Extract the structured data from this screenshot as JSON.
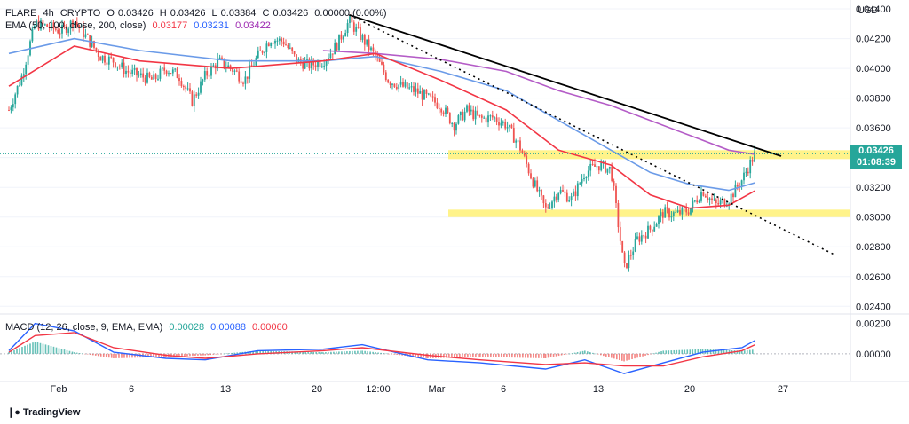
{
  "header": {
    "symbol": "FLARE",
    "interval": "4h",
    "exchange": "CRYPTO",
    "open_label": "O",
    "open": "0.03426",
    "high_label": "H",
    "high": "0.03426",
    "low_label": "L",
    "low": "0.03384",
    "close_label": "C",
    "close": "0.03426",
    "change": "0.00000 (0.00%)"
  },
  "ema_legend": {
    "label": "EMA (50, 100, close, 200, close)",
    "ema50": "0.03177",
    "ema100": "0.03231",
    "ema200": "0.03422"
  },
  "macd_legend": {
    "label": "MACD (12, 26, close, 9, EMA, EMA)",
    "histogram": "0.00028",
    "macd": "0.00088",
    "signal": "0.00060"
  },
  "axis": {
    "currency": "USD",
    "price_ticks": [
      "0.04400",
      "0.04200",
      "0.04000",
      "0.03800",
      "0.03600",
      "0.03400",
      "0.03200",
      "0.03000",
      "0.02800",
      "0.02600",
      "0.02400"
    ],
    "macd_ticks": [
      "0.00200",
      "0.00000"
    ],
    "time_ticks": [
      "Feb",
      "6",
      "13",
      "20",
      "12:00",
      "Mar",
      "6",
      "13",
      "20",
      "27"
    ]
  },
  "price_tag": {
    "price": "0.03426",
    "countdown": "01:08:39"
  },
  "branding": {
    "name": "TradingView"
  },
  "colors": {
    "up": "#26a69a",
    "down": "#ef5350",
    "ema50": "#f23645",
    "ema100": "#6b9be8",
    "ema200": "#b45cc7",
    "zone": "#fff176",
    "trendline": "#000000"
  },
  "chart_data": {
    "type": "line",
    "title": "",
    "x_range": [
      "Jan 27",
      "Mar 27"
    ],
    "ylim": [
      0.0236,
      0.0446
    ],
    "close_path": [
      {
        "x": "Jan 27",
        "y": 0.0372
      },
      {
        "x": "Jan 28",
        "y": 0.0395
      },
      {
        "x": "Jan 29",
        "y": 0.043
      },
      {
        "x": "Jan 30",
        "y": 0.0428
      },
      {
        "x": "Jan 31",
        "y": 0.0425
      },
      {
        "x": "Feb 1",
        "y": 0.0432
      },
      {
        "x": "Feb 2",
        "y": 0.042
      },
      {
        "x": "Feb 3",
        "y": 0.0408
      },
      {
        "x": "Feb 4",
        "y": 0.0405
      },
      {
        "x": "Feb 5",
        "y": 0.0398
      },
      {
        "x": "Feb 6",
        "y": 0.0395
      },
      {
        "x": "Feb 7",
        "y": 0.0392
      },
      {
        "x": "Feb 8",
        "y": 0.04
      },
      {
        "x": "Feb 9",
        "y": 0.0395
      },
      {
        "x": "Feb 10",
        "y": 0.0378
      },
      {
        "x": "Feb 11",
        "y": 0.0395
      },
      {
        "x": "Feb 12",
        "y": 0.0405
      },
      {
        "x": "Feb 13",
        "y": 0.04
      },
      {
        "x": "Feb 14",
        "y": 0.0392
      },
      {
        "x": "Feb 15",
        "y": 0.0408
      },
      {
        "x": "Feb 16",
        "y": 0.042
      },
      {
        "x": "Feb 17",
        "y": 0.0418
      },
      {
        "x": "Feb 18",
        "y": 0.0405
      },
      {
        "x": "Feb 19",
        "y": 0.0402
      },
      {
        "x": "Feb 20",
        "y": 0.0405
      },
      {
        "x": "Feb 21",
        "y": 0.0415
      },
      {
        "x": "Feb 22",
        "y": 0.0432
      },
      {
        "x": "Feb 23",
        "y": 0.042
      },
      {
        "x": "Feb 24",
        "y": 0.0408
      },
      {
        "x": "Feb 25",
        "y": 0.0392
      },
      {
        "x": "Feb 26",
        "y": 0.0388
      },
      {
        "x": "Feb 27",
        "y": 0.0385
      },
      {
        "x": "Feb 28",
        "y": 0.038
      },
      {
        "x": "Mar 1",
        "y": 0.0375
      },
      {
        "x": "Mar 2",
        "y": 0.0362
      },
      {
        "x": "Mar 3",
        "y": 0.0372
      },
      {
        "x": "Mar 4",
        "y": 0.0366
      },
      {
        "x": "Mar 5",
        "y": 0.0367
      },
      {
        "x": "Mar 6",
        "y": 0.0362
      },
      {
        "x": "Mar 7",
        "y": 0.0348
      },
      {
        "x": "Mar 8",
        "y": 0.0325
      },
      {
        "x": "Mar 9",
        "y": 0.0305
      },
      {
        "x": "Mar 10",
        "y": 0.0318
      },
      {
        "x": "Mar 11",
        "y": 0.0312
      },
      {
        "x": "Mar 12",
        "y": 0.033
      },
      {
        "x": "Mar 13",
        "y": 0.0335
      },
      {
        "x": "Mar 14",
        "y": 0.0332
      },
      {
        "x": "Mar 15",
        "y": 0.0265
      },
      {
        "x": "Mar 16",
        "y": 0.0285
      },
      {
        "x": "Mar 17",
        "y": 0.0292
      },
      {
        "x": "Mar 18",
        "y": 0.0303
      },
      {
        "x": "Mar 19",
        "y": 0.0302
      },
      {
        "x": "Mar 20",
        "y": 0.0305
      },
      {
        "x": "Mar 21",
        "y": 0.0318
      },
      {
        "x": "Mar 22",
        "y": 0.0308
      },
      {
        "x": "Mar 23",
        "y": 0.0312
      },
      {
        "x": "Mar 24",
        "y": 0.0325
      },
      {
        "x": "Mar 25",
        "y": 0.03426
      }
    ],
    "ema50": [
      {
        "x": "Jan 27",
        "y": 0.0388
      },
      {
        "x": "Feb 1",
        "y": 0.0415
      },
      {
        "x": "Feb 6",
        "y": 0.0405
      },
      {
        "x": "Feb 13",
        "y": 0.04
      },
      {
        "x": "Feb 20",
        "y": 0.0405
      },
      {
        "x": "Feb 24",
        "y": 0.041
      },
      {
        "x": "Mar 1",
        "y": 0.0392
      },
      {
        "x": "Mar 6",
        "y": 0.0372
      },
      {
        "x": "Mar 10",
        "y": 0.0345
      },
      {
        "x": "Mar 14",
        "y": 0.0335
      },
      {
        "x": "Mar 17",
        "y": 0.0315
      },
      {
        "x": "Mar 20",
        "y": 0.0306
      },
      {
        "x": "Mar 23",
        "y": 0.0308
      },
      {
        "x": "Mar 25",
        "y": 0.03177
      }
    ],
    "ema100": [
      {
        "x": "Jan 27",
        "y": 0.041
      },
      {
        "x": "Feb 1",
        "y": 0.042
      },
      {
        "x": "Feb 6",
        "y": 0.0412
      },
      {
        "x": "Feb 13",
        "y": 0.0405
      },
      {
        "x": "Feb 20",
        "y": 0.0405
      },
      {
        "x": "Feb 24",
        "y": 0.0408
      },
      {
        "x": "Mar 1",
        "y": 0.0398
      },
      {
        "x": "Mar 6",
        "y": 0.0385
      },
      {
        "x": "Mar 10",
        "y": 0.0365
      },
      {
        "x": "Mar 14",
        "y": 0.0345
      },
      {
        "x": "Mar 17",
        "y": 0.033
      },
      {
        "x": "Mar 20",
        "y": 0.0322
      },
      {
        "x": "Mar 23",
        "y": 0.0318
      },
      {
        "x": "Mar 25",
        "y": 0.03231
      }
    ],
    "ema200": [
      {
        "x": "Feb 20",
        "y": 0.0412
      },
      {
        "x": "Feb 24",
        "y": 0.041
      },
      {
        "x": "Mar 1",
        "y": 0.0406
      },
      {
        "x": "Mar 6",
        "y": 0.0398
      },
      {
        "x": "Mar 10",
        "y": 0.0385
      },
      {
        "x": "Mar 14",
        "y": 0.0375
      },
      {
        "x": "Mar 17",
        "y": 0.0365
      },
      {
        "x": "Mar 20",
        "y": 0.0355
      },
      {
        "x": "Mar 23",
        "y": 0.0345
      },
      {
        "x": "Mar 25",
        "y": 0.03422
      }
    ],
    "trendline_solid": [
      {
        "x": "Feb 22",
        "y": 0.0436
      },
      {
        "x": "Mar 27",
        "y": 0.0341
      }
    ],
    "trendline_dotted": [
      {
        "x": "Feb 22",
        "y": 0.0436
      },
      {
        "x": "Mar 31",
        "y": 0.0275
      }
    ],
    "zones": [
      {
        "from": 0.0339,
        "to": 0.0345
      },
      {
        "from": 0.03,
        "to": 0.0305
      }
    ],
    "macd": {
      "ylim": [
        -0.0017,
        0.0025
      ],
      "macd_line": [
        {
          "x": "Jan 27",
          "y": 0.0002
        },
        {
          "x": "Jan 29",
          "y": 0.002
        },
        {
          "x": "Feb 1",
          "y": 0.0015
        },
        {
          "x": "Feb 4",
          "y": 0.0001
        },
        {
          "x": "Feb 8",
          "y": -0.0003
        },
        {
          "x": "Feb 11",
          "y": -0.0004
        },
        {
          "x": "Feb 15",
          "y": 0.0002
        },
        {
          "x": "Feb 20",
          "y": 0.0003
        },
        {
          "x": "Feb 23",
          "y": 0.0006
        },
        {
          "x": "Feb 28",
          "y": -0.0004
        },
        {
          "x": "Mar 4",
          "y": -0.0006
        },
        {
          "x": "Mar 9",
          "y": -0.001
        },
        {
          "x": "Mar 12",
          "y": -0.0004
        },
        {
          "x": "Mar 15",
          "y": -0.0013
        },
        {
          "x": "Mar 18",
          "y": -0.0006
        },
        {
          "x": "Mar 21",
          "y": 0.0001
        },
        {
          "x": "Mar 24",
          "y": 0.0004
        },
        {
          "x": "Mar 25",
          "y": 0.00088
        }
      ],
      "signal_line": [
        {
          "x": "Jan 27",
          "y": 0.0001
        },
        {
          "x": "Jan 29",
          "y": 0.0012
        },
        {
          "x": "Feb 1",
          "y": 0.0014
        },
        {
          "x": "Feb 4",
          "y": 0.0004
        },
        {
          "x": "Feb 8",
          "y": -0.0001
        },
        {
          "x": "Feb 11",
          "y": -0.0003
        },
        {
          "x": "Feb 15",
          "y": 0.0
        },
        {
          "x": "Feb 20",
          "y": 0.0002
        },
        {
          "x": "Feb 23",
          "y": 0.0004
        },
        {
          "x": "Feb 28",
          "y": -0.0001
        },
        {
          "x": "Mar 4",
          "y": -0.0004
        },
        {
          "x": "Mar 9",
          "y": -0.0007
        },
        {
          "x": "Mar 12",
          "y": -0.0006
        },
        {
          "x": "Mar 15",
          "y": -0.0008
        },
        {
          "x": "Mar 18",
          "y": -0.0008
        },
        {
          "x": "Mar 21",
          "y": -0.0002
        },
        {
          "x": "Mar 24",
          "y": 0.0002
        },
        {
          "x": "Mar 25",
          "y": 0.0006
        }
      ]
    }
  }
}
